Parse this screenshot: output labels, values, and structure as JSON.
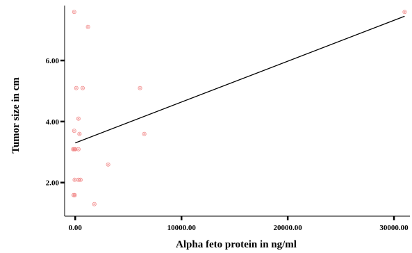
{
  "chart_data": {
    "type": "scatter",
    "title": "",
    "xlabel": "Alpha feto protein in ng/ml",
    "ylabel": "Tumor size in cm",
    "xlim": [
      -1000,
      31500
    ],
    "ylim": [
      0.9,
      7.8
    ],
    "x_ticks": [
      {
        "value": 0,
        "label": "0.00"
      },
      {
        "value": 10000,
        "label": "10000.00"
      },
      {
        "value": 20000,
        "label": "20000.00"
      },
      {
        "value": 30000,
        "label": "30000.00"
      }
    ],
    "y_ticks": [
      {
        "value": 2,
        "label": "2.00"
      },
      {
        "value": 4,
        "label": "4.00"
      },
      {
        "value": 6,
        "label": "6.00"
      }
    ],
    "point_marker": "⊛",
    "point_color": "#f08080",
    "fit_line_color": "#000000",
    "fit_line": {
      "x_start": 0,
      "y_start": 3.3,
      "x_end": 31000,
      "y_end": 7.45
    },
    "points": [
      {
        "x": -100,
        "y": 7.6
      },
      {
        "x": 1200,
        "y": 7.1
      },
      {
        "x": 31000,
        "y": 7.6
      },
      {
        "x": 100,
        "y": 5.1
      },
      {
        "x": 700,
        "y": 5.1
      },
      {
        "x": 6100,
        "y": 5.1
      },
      {
        "x": 300,
        "y": 4.1
      },
      {
        "x": -100,
        "y": 3.7
      },
      {
        "x": 400,
        "y": 3.6
      },
      {
        "x": 6500,
        "y": 3.6
      },
      {
        "x": -200,
        "y": 3.1
      },
      {
        "x": -100,
        "y": 3.1
      },
      {
        "x": 0,
        "y": 3.1
      },
      {
        "x": 300,
        "y": 3.1
      },
      {
        "x": 3100,
        "y": 2.6
      },
      {
        "x": -50,
        "y": 2.1
      },
      {
        "x": 300,
        "y": 2.1
      },
      {
        "x": 500,
        "y": 2.1
      },
      {
        "x": -150,
        "y": 1.6
      },
      {
        "x": -50,
        "y": 1.6
      },
      {
        "x": 1800,
        "y": 1.3
      }
    ]
  }
}
